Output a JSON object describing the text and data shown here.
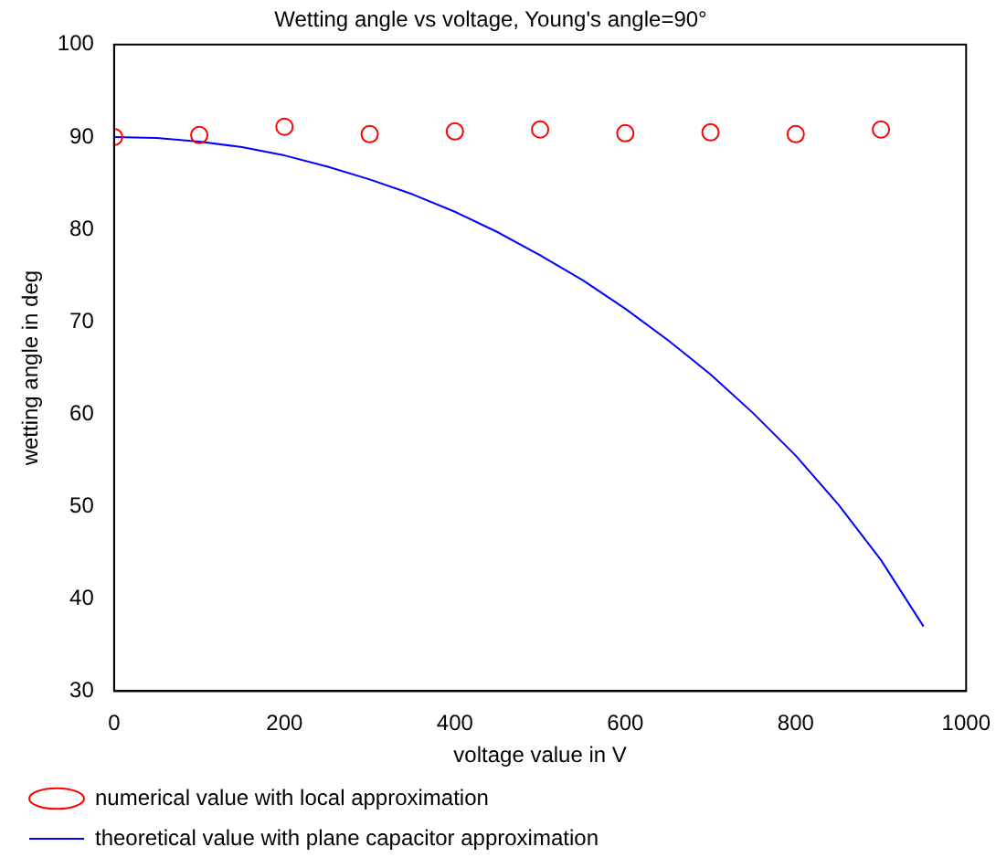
{
  "chart_data": {
    "type": "scatter",
    "title": "Wetting angle vs voltage, Young's angle=90°",
    "xlabel": "voltage value in V",
    "ylabel": "wetting angle in deg",
    "xlim": [
      0,
      1000
    ],
    "xticks": [
      0,
      200,
      400,
      600,
      800,
      1000
    ],
    "ylim": [
      30,
      100
    ],
    "yticks": [
      30,
      40,
      50,
      60,
      70,
      80,
      90,
      100
    ],
    "grid": false,
    "legend": "bottom left",
    "series": [
      {
        "name": "numerical value with local approximation",
        "marker": "circle",
        "color": "#ff0000",
        "x": [
          0,
          100,
          200,
          300,
          400,
          500,
          600,
          700,
          800,
          900
        ],
        "values": [
          90.0,
          90.2,
          91.1,
          90.3,
          90.6,
          90.8,
          90.4,
          90.5,
          90.3,
          90.8
        ]
      },
      {
        "name": "theoretical value with plane capacitor approximation",
        "type": "line",
        "marker": "none",
        "line_style": "solid",
        "color": "#0000ff",
        "x": [
          0,
          50,
          100,
          150,
          200,
          250,
          300,
          350,
          400,
          450,
          500,
          550,
          600,
          650,
          700,
          750,
          800,
          850,
          900,
          950
        ],
        "values": [
          90,
          89.9,
          89.5,
          88.9,
          88.0,
          86.8,
          85.4,
          83.8,
          81.9,
          79.7,
          77.2,
          74.5,
          71.4,
          68.0,
          64.3,
          60.1,
          55.5,
          50.2,
          44.2,
          37.0
        ]
      }
    ]
  }
}
